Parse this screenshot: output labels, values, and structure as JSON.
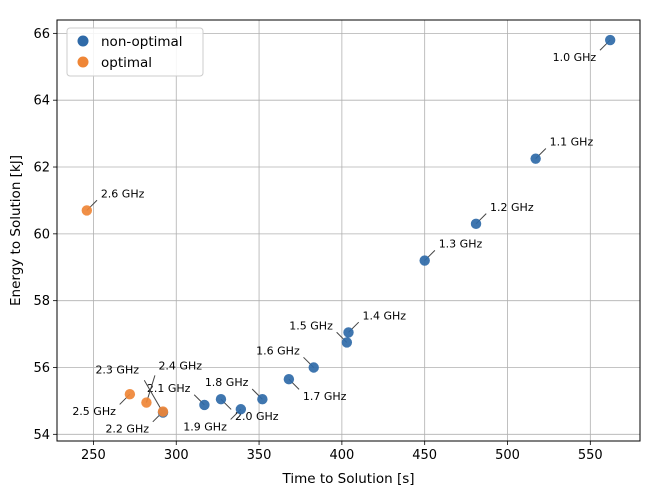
{
  "chart_data": {
    "type": "scatter",
    "title": "",
    "xlabel": "Time to Solution [s]",
    "ylabel": "Energy to Solution [kJ]",
    "xlim": [
      228,
      580
    ],
    "ylim": [
      53.8,
      66.4
    ],
    "xticks": [
      250,
      300,
      350,
      400,
      450,
      500,
      550
    ],
    "yticks": [
      54,
      56,
      58,
      60,
      62,
      64,
      66
    ],
    "grid": true,
    "legend_position": "top-left",
    "series": [
      {
        "name": "non-optimal",
        "color": "#2f6aa8",
        "points": [
          {
            "x": 562,
            "y": 65.8,
            "label": "1.0 GHz",
            "label_pos": "below-left"
          },
          {
            "x": 517,
            "y": 62.25,
            "label": "1.1 GHz",
            "label_pos": "above-right"
          },
          {
            "x": 481,
            "y": 60.3,
            "label": "1.2 GHz",
            "label_pos": "above-right"
          },
          {
            "x": 450,
            "y": 59.2,
            "label": "1.3 GHz",
            "label_pos": "above-right"
          },
          {
            "x": 404,
            "y": 57.05,
            "label": "1.4 GHz",
            "label_pos": "above-right"
          },
          {
            "x": 403,
            "y": 56.75,
            "label": "1.5 GHz",
            "label_pos": "above-left"
          },
          {
            "x": 383,
            "y": 56.0,
            "label": "1.6 GHz",
            "label_pos": "above-left"
          },
          {
            "x": 368,
            "y": 55.65,
            "label": "1.7 GHz",
            "label_pos": "below-right"
          },
          {
            "x": 352,
            "y": 55.05,
            "label": "1.8 GHz",
            "label_pos": "above-left"
          },
          {
            "x": 339,
            "y": 54.75,
            "label": "1.9 GHz",
            "label_pos": "below-left"
          },
          {
            "x": 327,
            "y": 55.05,
            "label": "2.0 GHz",
            "label_pos": "below-right"
          },
          {
            "x": 317,
            "y": 54.88,
            "label": "2.1 GHz",
            "label_pos": "above-left"
          },
          {
            "x": 292,
            "y": 54.65,
            "label": "2.3 GHz",
            "label_pos": "above-left-far"
          }
        ]
      },
      {
        "name": "optimal",
        "color": "#ef8636",
        "points": [
          {
            "x": 246,
            "y": 60.7,
            "label": "2.6 GHz",
            "label_pos": "above-right"
          },
          {
            "x": 272,
            "y": 55.2,
            "label": "2.5 GHz",
            "label_pos": "below-left"
          },
          {
            "x": 282,
            "y": 54.95,
            "label": "2.4 GHz",
            "label_pos": "above-right-far"
          },
          {
            "x": 292,
            "y": 54.68,
            "label": "2.2 GHz",
            "label_pos": "below-left"
          }
        ]
      }
    ]
  }
}
